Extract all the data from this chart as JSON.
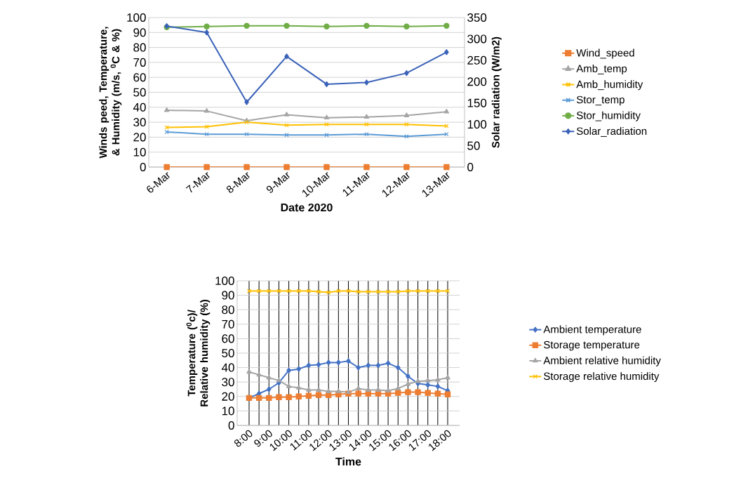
{
  "chart_data": [
    {
      "type": "line",
      "xlabel": "Date 2020",
      "ylabel": "Winds peed, Temperature, & Humidity (m/s, $^{0}$C & %)",
      "y2label": "Solar radiation (W/m2)",
      "categories": [
        "6-Mar",
        "7-Mar",
        "8-Mar",
        "9-Mar",
        "10-Mar",
        "11-Mar",
        "12-Mar",
        "13-Mar"
      ],
      "series": [
        {
          "name": "Wind_speed",
          "color": "#ed7d31",
          "marker": "square",
          "values": [
            0,
            0,
            0,
            0,
            0,
            0,
            0,
            0
          ]
        },
        {
          "name": "Amb_temp",
          "color": "#a5a5a5",
          "marker": "triangle",
          "values": [
            38,
            37.5,
            31,
            35,
            33,
            33.5,
            34.5,
            37
          ]
        },
        {
          "name": "Amb_humidity",
          "color": "#ffc000",
          "marker": "cross",
          "values": [
            26.5,
            27,
            30,
            28,
            28.5,
            28.5,
            28.5,
            27.5
          ]
        },
        {
          "name": "Stor_temp",
          "color": "#5b9bd5",
          "marker": "cross",
          "values": [
            23.5,
            22,
            22,
            21.5,
            21.5,
            22,
            20.5,
            22
          ]
        },
        {
          "name": "Stor_humidity",
          "color": "#70ad47",
          "marker": "circle",
          "values": [
            93.5,
            94,
            94.5,
            94.5,
            94,
            94.5,
            94,
            94.5
          ]
        },
        {
          "name": "Solar_radiation",
          "color": "#3a62b8",
          "marker": "diamond",
          "axis": "y2",
          "values": [
            330,
            315,
            152,
            259,
            194,
            198,
            220,
            269
          ]
        }
      ],
      "ylim": [
        0,
        100
      ],
      "yticks": [
        0,
        10,
        20,
        30,
        40,
        50,
        60,
        70,
        80,
        90,
        100
      ],
      "y2lim": [
        0,
        350
      ],
      "y2ticks": [
        0,
        50,
        100,
        150,
        200,
        250,
        300,
        350
      ],
      "grid": "y",
      "legend": "right"
    },
    {
      "type": "line",
      "xlabel": "Time",
      "ylabel": "Temperature ($^{0}$c)/ Relative humidity (%)",
      "categories": [
        "8:00",
        null,
        "9:00",
        null,
        "10:00",
        null,
        "11:00",
        null,
        "12:00",
        null,
        "13:00",
        null,
        "14:00",
        null,
        "15:00",
        null,
        "16:00",
        null,
        "17:00",
        null,
        "18:00"
      ],
      "series": [
        {
          "name": "Ambient temperature",
          "color": "#4472c4",
          "marker": "diamond",
          "values": [
            19,
            22,
            25,
            29.5,
            38,
            39,
            41.5,
            42,
            43.5,
            43.5,
            44.5,
            40,
            41.5,
            41.5,
            43,
            40,
            34,
            29,
            28,
            27,
            24
          ]
        },
        {
          "name": "Storage temperature",
          "color": "#ed7d31",
          "marker": "square",
          "values": [
            19,
            19,
            19,
            19.5,
            19.5,
            20,
            20.5,
            21,
            21,
            21.5,
            22,
            22,
            22,
            22,
            22,
            22.5,
            23,
            23,
            22.5,
            22,
            21.5
          ]
        },
        {
          "name": "Ambient relative humidity",
          "color": "#a5a5a5",
          "marker": "triangle",
          "values": [
            37,
            35,
            33,
            31,
            27,
            26,
            24.5,
            24.5,
            23.5,
            23.5,
            23,
            25.5,
            24.5,
            24.5,
            24,
            25.5,
            28.5,
            30.5,
            31,
            31.5,
            33
          ]
        },
        {
          "name": "Storage relative humidity",
          "color": "#ffc000",
          "marker": "cross",
          "values": [
            93,
            93,
            93,
            93,
            93,
            93,
            93,
            92.5,
            92,
            93,
            93,
            92.5,
            92.5,
            92.5,
            92.5,
            92.5,
            93,
            93,
            93,
            93,
            93
          ]
        }
      ],
      "ylim": [
        0,
        100
      ],
      "yticks": [
        0,
        10,
        20,
        30,
        40,
        50,
        60,
        70,
        80,
        90,
        100
      ],
      "grid": true,
      "legend": "right"
    }
  ]
}
